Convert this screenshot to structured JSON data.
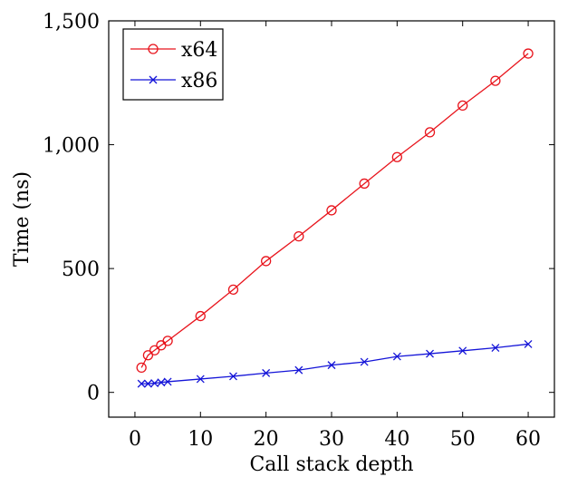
{
  "chart_data": {
    "type": "line",
    "title": "",
    "xlabel": "Call stack depth",
    "ylabel": "Time (ns)",
    "xlim": [
      -4,
      64
    ],
    "ylim": [
      -100,
      1500
    ],
    "xticks": [
      0,
      10,
      20,
      30,
      40,
      50,
      60
    ],
    "xtick_labels": [
      "0",
      "10",
      "20",
      "30",
      "40",
      "50",
      "60"
    ],
    "yticks": [
      0,
      500,
      1000,
      1500
    ],
    "ytick_labels": [
      "0",
      "500",
      "1,000",
      "1,500"
    ],
    "grid": false,
    "legend_position": "top-left",
    "x": [
      1,
      2,
      3,
      4,
      5,
      10,
      15,
      20,
      25,
      30,
      35,
      40,
      45,
      50,
      55,
      60
    ],
    "series": [
      {
        "name": "x64",
        "color": "#e8141c",
        "marker": "circle",
        "values": [
          100,
          150,
          170,
          190,
          208,
          308,
          415,
          530,
          630,
          735,
          843,
          950,
          1050,
          1158,
          1258,
          1368
        ]
      },
      {
        "name": "x86",
        "color": "#1414d8",
        "marker": "cross",
        "values": [
          35,
          35,
          37,
          40,
          43,
          54,
          65,
          78,
          90,
          110,
          123,
          145,
          156,
          168,
          180,
          195
        ]
      }
    ]
  }
}
